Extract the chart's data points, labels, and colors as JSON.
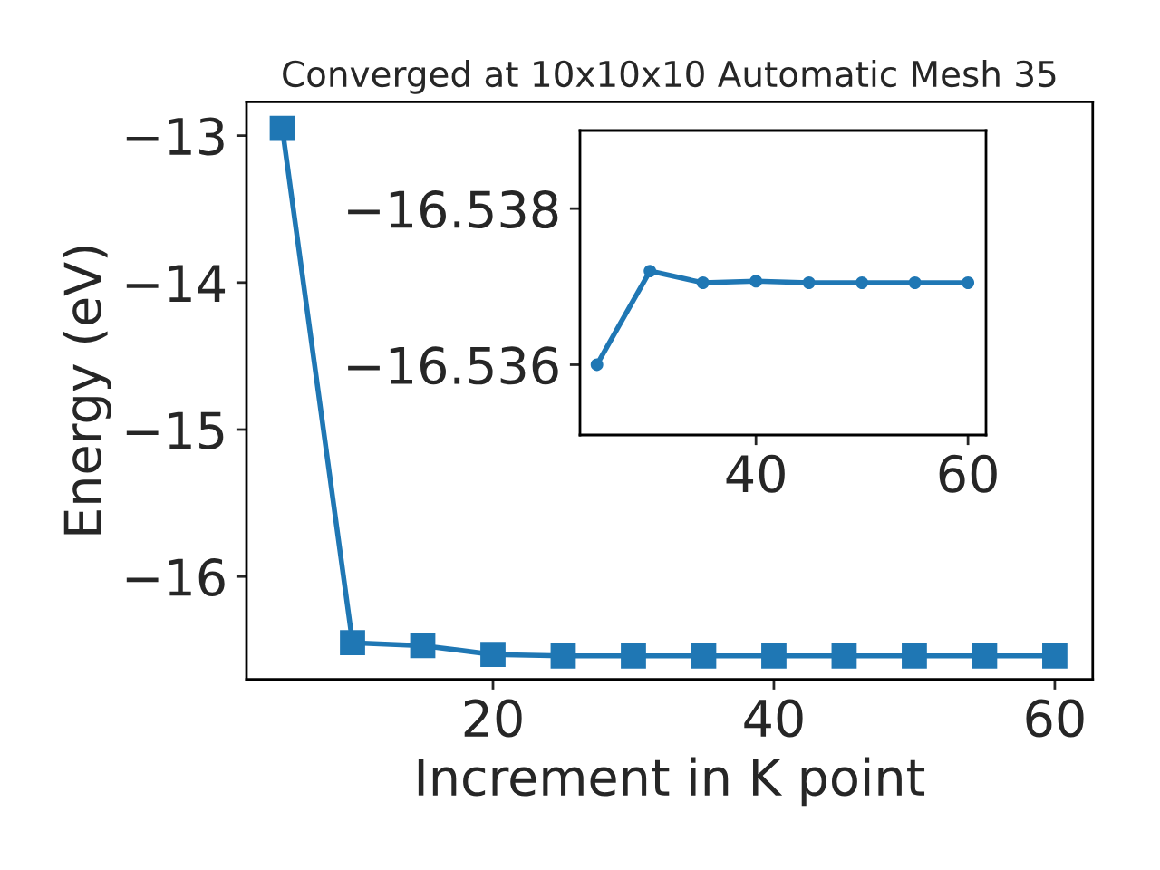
{
  "chart_data": [
    {
      "type": "line",
      "title": "Converged at 10x10x10 Automatic Mesh 35",
      "xlabel": "Increment in K point",
      "ylabel": "Energy (eV)",
      "x": [
        5,
        10,
        15,
        20,
        25,
        30,
        35,
        40,
        45,
        50,
        55,
        60
      ],
      "series": [
        {
          "color": "#1f77b4",
          "values": [
            -12.95,
            -16.45,
            -16.47,
            -16.53,
            -16.54,
            -16.54,
            -16.54,
            -16.54,
            -16.54,
            -16.54,
            -16.54,
            -16.54
          ]
        }
      ],
      "xlim": [
        2.45,
        62.7
      ],
      "ylim": [
        -16.7,
        -12.77
      ],
      "xticks": [
        20,
        40,
        60
      ],
      "yticks": [
        {
          "value": -16,
          "label": "−16"
        },
        {
          "value": -15,
          "label": "−15"
        },
        {
          "value": -14,
          "label": "−14"
        },
        {
          "value": -13,
          "label": "−13"
        }
      ],
      "marker": "square",
      "line_style": "solid",
      "grid": false,
      "legend": false
    },
    {
      "type": "line",
      "x": [
        25,
        30,
        35,
        40,
        45,
        50,
        55,
        60
      ],
      "series": [
        {
          "color": "#1f77b4",
          "values": [
            -16.536,
            -16.5372,
            -16.53705,
            -16.53707,
            -16.53705,
            -16.53705,
            -16.53705,
            -16.53705
          ]
        }
      ],
      "xlim": [
        23.4,
        61.7
      ],
      "ylim": [
        -16.5351,
        -16.539
      ],
      "xticks": [
        40,
        60
      ],
      "yticks": [
        {
          "value": -16.538,
          "label": "−16.538"
        },
        {
          "value": -16.536,
          "label": "−16.536"
        }
      ],
      "marker": "circle",
      "line_style": "solid",
      "grid": false,
      "legend": false
    }
  ]
}
